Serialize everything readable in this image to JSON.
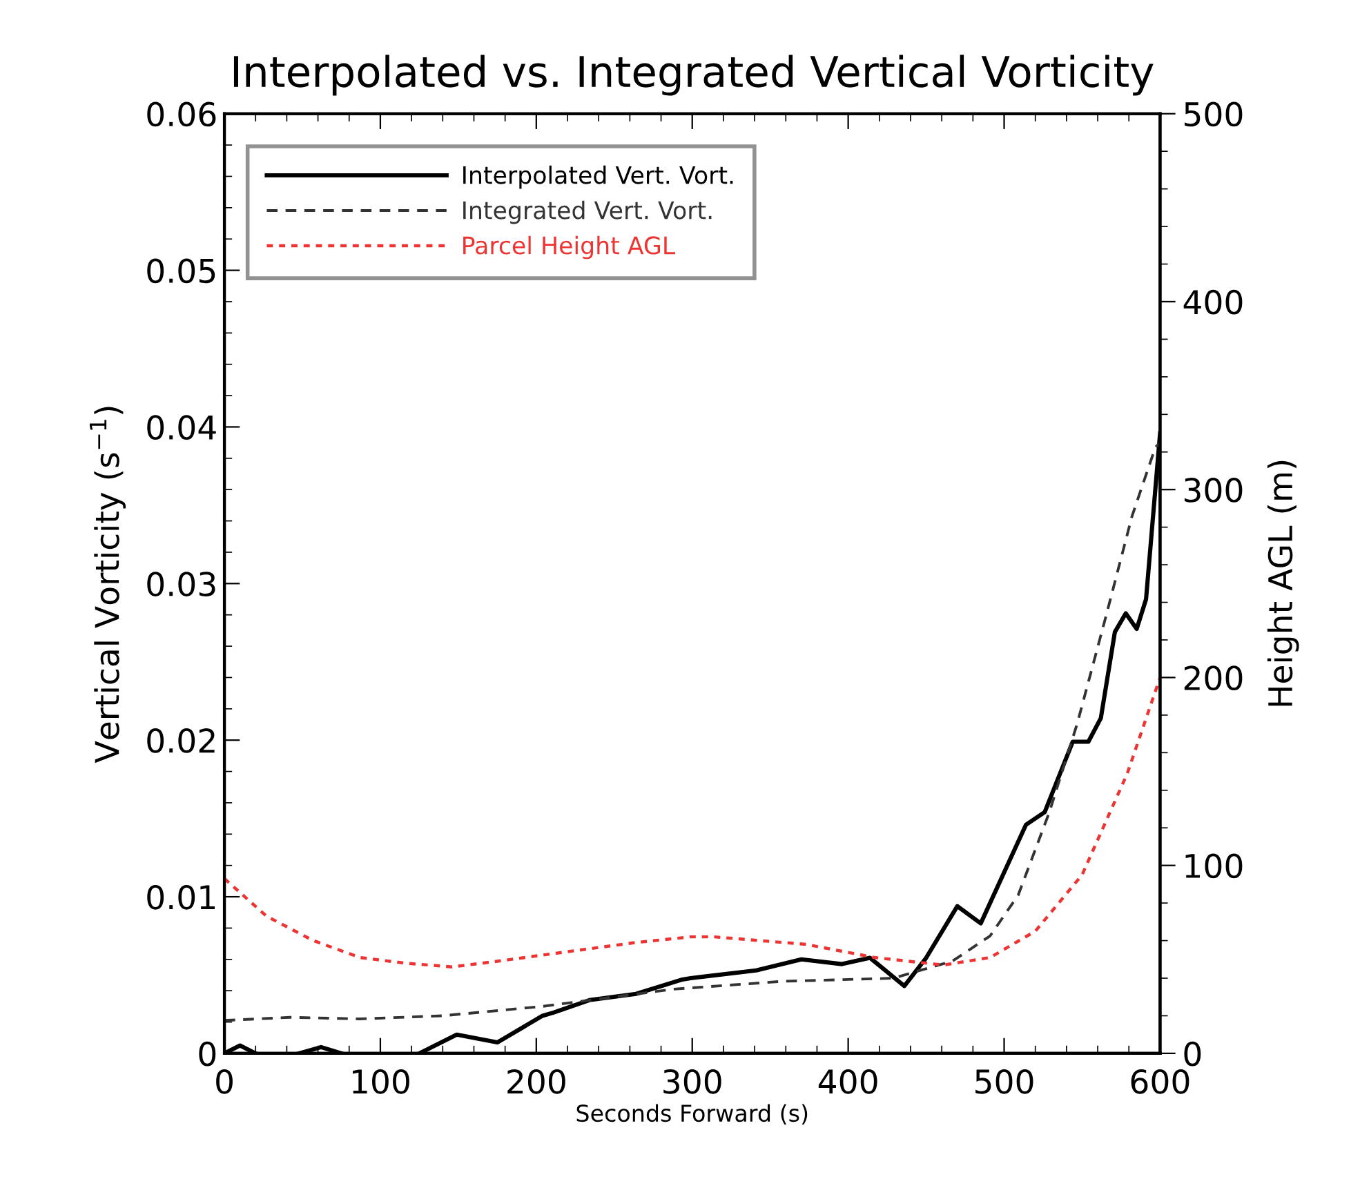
{
  "chart_data": {
    "type": "line",
    "title": "Interpolated vs. Integrated Vertical Vorticity",
    "xlabel": "Seconds Forward (s)",
    "ylabel": "Vertical Vorticity (s$^{−1}$)",
    "y2label": "Height AGL (m)",
    "xlim": [
      0,
      600
    ],
    "xticks": [
      0,
      100,
      200,
      300,
      400,
      500,
      600
    ],
    "ylim": [
      0,
      0.06
    ],
    "yticks": [
      0,
      0.01,
      0.02,
      0.03,
      0.04,
      0.05,
      0.06
    ],
    "y2lim": [
      0,
      500
    ],
    "y2ticks": [
      0,
      100,
      200,
      300,
      400,
      500
    ],
    "legend": "top left",
    "grid": false,
    "series": [
      {
        "name": "Interpolated Vert. Vort.",
        "color": "#000000",
        "line_style": "solid",
        "x": [
          0,
          10,
          20,
          34,
          48,
          62,
          75,
          100,
          125,
          149,
          175,
          204,
          211,
          234,
          264,
          293,
          299,
          341,
          370,
          396,
          414,
          436,
          450,
          470,
          485,
          514,
          526,
          544,
          554,
          562,
          571,
          578,
          585,
          591,
          600
        ],
        "values": [
          0,
          0.0005,
          0,
          null,
          0,
          0.0004,
          0,
          null,
          0,
          0.0012,
          0.0007,
          0.0024,
          0.0026,
          0.0034,
          0.0038,
          0.0047,
          0.0048,
          0.0053,
          0.006,
          0.0057,
          0.0061,
          0.0043,
          0.0061,
          0.0094,
          0.0083,
          0.0146,
          0.0154,
          0.0199,
          0.0199,
          0.0214,
          0.0269,
          0.0281,
          0.0271,
          0.029,
          0.0396
        ]
      },
      {
        "name": "Integrated Vert. Vort.",
        "color": "#333333",
        "line_style": "dashed",
        "x": [
          0,
          42,
          87,
          140,
          204,
          288,
          358,
          429,
          467,
          491,
          509,
          529,
          547,
          565,
          582,
          597,
          600
        ],
        "values": [
          0.0021,
          0.0023,
          0.0022,
          0.0024,
          0.003,
          0.0041,
          0.0046,
          0.0048,
          0.0059,
          0.0075,
          0.0101,
          0.0154,
          0.0211,
          0.0278,
          0.0343,
          0.0387,
          0.039
        ]
      },
      {
        "name": "Parcel Height AGL",
        "color": "#ee3333",
        "line_style": "dotted",
        "axis": "y2",
        "x": [
          0,
          27,
          57,
          87,
          116,
          146,
          175,
          219,
          264,
          299,
          314,
          373,
          417,
          461,
          491,
          520,
          550,
          579,
          600
        ],
        "values": [
          93,
          73,
          60,
          51,
          48,
          46,
          49,
          54,
          59,
          62,
          62,
          58,
          51,
          47,
          51,
          65,
          95,
          149,
          200
        ]
      }
    ]
  }
}
